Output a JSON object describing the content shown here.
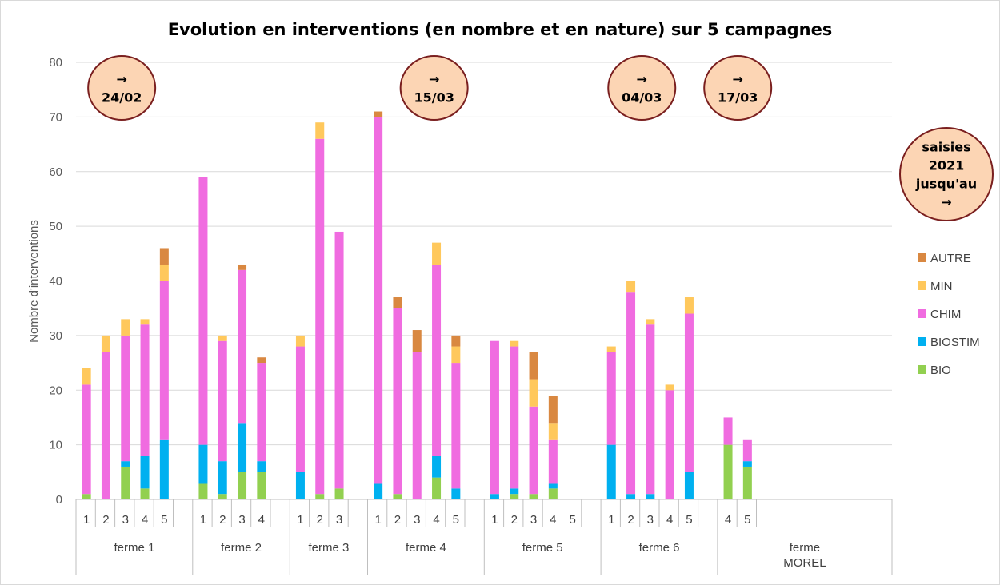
{
  "chart_data": {
    "type": "bar",
    "stacked": true,
    "title": "Evolution en interventions (en nombre et en nature) sur 5 campagnes",
    "ylabel": "Nombre d'interventions",
    "xlabel": "",
    "ylim": [
      0,
      80
    ],
    "yticks": [
      0,
      10,
      20,
      30,
      40,
      50,
      60,
      70,
      80
    ],
    "grid": true,
    "legend_position": "right",
    "groups": [
      {
        "name": "ferme 1",
        "name_lines": [
          "ferme 1"
        ],
        "categories": [
          "1",
          "2",
          "3",
          "4",
          "5"
        ]
      },
      {
        "name": "ferme 2",
        "name_lines": [
          "ferme 2"
        ],
        "categories": [
          "1",
          "2",
          "3",
          "4"
        ]
      },
      {
        "name": "ferme 3",
        "name_lines": [
          "ferme 3"
        ],
        "categories": [
          "1",
          "2",
          "3"
        ]
      },
      {
        "name": "ferme 4",
        "name_lines": [
          "ferme 4"
        ],
        "categories": [
          "1",
          "2",
          "3",
          "4",
          "5"
        ]
      },
      {
        "name": "ferme 5",
        "name_lines": [
          "ferme 5"
        ],
        "categories": [
          "1",
          "2",
          "3",
          "4",
          "5"
        ]
      },
      {
        "name": "ferme 6",
        "name_lines": [
          "ferme 6"
        ],
        "categories": [
          "1",
          "2",
          "3",
          "4",
          "5"
        ]
      },
      {
        "name": "ferme MOREL",
        "name_lines": [
          "ferme",
          "MOREL"
        ],
        "categories": [
          "4",
          "5"
        ]
      }
    ],
    "series": [
      {
        "name": "BIO",
        "color": "#92D050",
        "values": [
          [
            1,
            0,
            6,
            2,
            0
          ],
          [
            3,
            1,
            5,
            5
          ],
          [
            0,
            1,
            2
          ],
          [
            0,
            1,
            0,
            4,
            0
          ],
          [
            0,
            1,
            1,
            2,
            0
          ],
          [
            0,
            0,
            0,
            0,
            0
          ],
          [
            10,
            6
          ]
        ]
      },
      {
        "name": "BIOSTIM",
        "color": "#00B0F0",
        "values": [
          [
            0,
            0,
            1,
            6,
            11
          ],
          [
            7,
            6,
            9,
            2
          ],
          [
            5,
            0,
            0
          ],
          [
            3,
            0,
            0,
            4,
            2
          ],
          [
            1,
            1,
            0,
            1,
            0
          ],
          [
            10,
            1,
            1,
            0,
            5
          ],
          [
            0,
            1
          ]
        ]
      },
      {
        "name": "CHIM",
        "color": "#F06CE0",
        "values": [
          [
            20,
            27,
            23,
            24,
            29
          ],
          [
            49,
            22,
            28,
            18
          ],
          [
            23,
            65,
            47
          ],
          [
            67,
            34,
            27,
            35,
            23
          ],
          [
            28,
            26,
            16,
            8,
            0
          ],
          [
            17,
            37,
            31,
            20,
            29
          ],
          [
            5,
            4
          ]
        ]
      },
      {
        "name": "MIN",
        "color": "#FFC85C",
        "values": [
          [
            3,
            3,
            3,
            1,
            3
          ],
          [
            0,
            1,
            0,
            0
          ],
          [
            2,
            3,
            0
          ],
          [
            0,
            0,
            0,
            4,
            3
          ],
          [
            0,
            1,
            5,
            3,
            0
          ],
          [
            1,
            2,
            1,
            1,
            3
          ],
          [
            0,
            0
          ]
        ]
      },
      {
        "name": "AUTRE",
        "color": "#D98841",
        "values": [
          [
            0,
            0,
            0,
            0,
            3
          ],
          [
            0,
            0,
            1,
            1
          ],
          [
            0,
            0,
            0
          ],
          [
            1,
            2,
            4,
            0,
            2
          ],
          [
            0,
            0,
            5,
            5,
            0
          ],
          [
            0,
            0,
            0,
            0,
            0
          ],
          [
            0,
            0
          ]
        ]
      }
    ],
    "annotations": [
      {
        "group": "ferme 1",
        "lines": [
          "→",
          "24/02"
        ]
      },
      {
        "group": "ferme 4",
        "lines": [
          "→",
          "15/03"
        ]
      },
      {
        "group": "ferme 6",
        "lines": [
          "→",
          "04/03"
        ]
      },
      {
        "group": "ferme MOREL",
        "lines": [
          "→",
          "17/03"
        ]
      },
      {
        "group": "legend",
        "lines": [
          "saisies",
          "2021",
          "jusqu'au",
          "→"
        ]
      }
    ],
    "colors": {
      "bubble_fill": "#FCD5B4",
      "bubble_stroke": "#7A1F1F",
      "grid": "#D9D9D9",
      "axis": "#BFBFBF"
    }
  }
}
